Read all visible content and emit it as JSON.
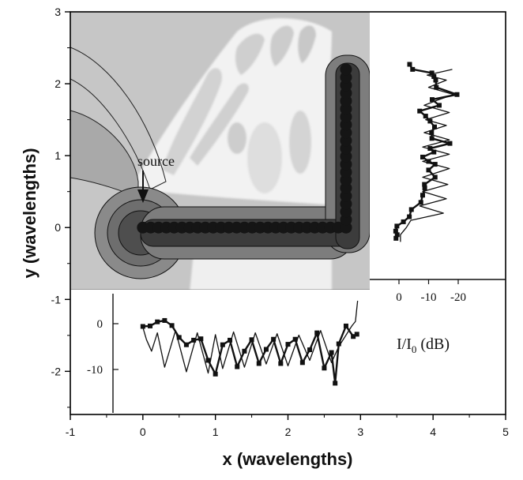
{
  "chart_data": [
    {
      "type": "heatmap",
      "title": "",
      "xlabel": "x (wavelengths)",
      "ylabel": "y (wavelengths)",
      "xlim": [
        -1,
        5
      ],
      "ylim": [
        -2.6,
        3
      ],
      "x_ticks": [
        "-1",
        "0",
        "1",
        "2",
        "3",
        "4",
        "5"
      ],
      "y_ticks": [
        "-2",
        "-1",
        "0",
        "1",
        "2",
        "3"
      ],
      "field_region": {
        "x": [
          -1,
          3.1
        ],
        "y": [
          -0.4,
          3
        ]
      },
      "waveguide": [
        {
          "from": [
            0,
            0
          ],
          "to": [
            2.8,
            0
          ]
        },
        {
          "from": [
            2.8,
            0
          ],
          "to": [
            2.8,
            2.2
          ]
        }
      ],
      "annotations": [
        {
          "text": "source",
          "x": 0,
          "y": 0
        }
      ]
    },
    {
      "type": "line",
      "title": "",
      "xlabel": "",
      "ylabel": "I/I₀ (dB)",
      "ylim": [
        -13.5,
        3
      ],
      "y_ticks": [
        "0",
        "-10"
      ],
      "series": [
        {
          "x": [
            0,
            0.1,
            0.2,
            0.3,
            0.4,
            0.5,
            0.6,
            0.7,
            0.8,
            0.9,
            1.0,
            1.1,
            1.2,
            1.3,
            1.4,
            1.5,
            1.6,
            1.7,
            1.8,
            1.9,
            2.0,
            2.1,
            2.2,
            2.3,
            2.4,
            2.5,
            2.6,
            2.65,
            2.7,
            2.8,
            2.9,
            2.95
          ],
          "values": [
            -0.6,
            -0.5,
            0.4,
            0.7,
            -0.4,
            -3.0,
            -4.6,
            -3.6,
            -3.3,
            -8.0,
            -11.0,
            -4.6,
            -3.6,
            -9.4,
            -6.0,
            -3.5,
            -8.7,
            -5.6,
            -3.4,
            -8.7,
            -4.5,
            -3.4,
            -8.5,
            -5.7,
            -2.0,
            -9.7,
            -6.3,
            -13.0,
            -4.4,
            -0.5,
            -2.8,
            -2.3
          ]
        },
        {
          "x": [
            0,
            0.05,
            0.12,
            0.2,
            0.3,
            0.45,
            0.6,
            0.75,
            0.9,
            1.0,
            1.1,
            1.25,
            1.4,
            1.55,
            1.7,
            1.85,
            2.0,
            2.15,
            2.3,
            2.45,
            2.6,
            2.7,
            2.8,
            2.88,
            2.93,
            2.96
          ],
          "values": [
            -0.8,
            -3.5,
            -6.0,
            -2.0,
            -9.5,
            -1.5,
            -10.5,
            -2.0,
            -10.8,
            -2.4,
            -9.8,
            -1.8,
            -9.5,
            -2.0,
            -8.8,
            -2.2,
            -9.2,
            -2.5,
            -8.0,
            -1.5,
            -8.5,
            -5.0,
            -2.5,
            -0.5,
            0.5,
            5.0
          ]
        }
      ]
    },
    {
      "type": "line",
      "title": "",
      "xlabel": "I/I₀ (dB)",
      "ylabel": "",
      "xlim": [
        2,
        -22
      ],
      "x_ticks": [
        "0",
        "-10",
        "-20"
      ],
      "series": [
        {
          "y": [
            2.27,
            2.2,
            2.15,
            2.1,
            2.05,
            1.95,
            1.85,
            1.78,
            1.7,
            1.62,
            1.55,
            1.48,
            1.4,
            1.32,
            1.24,
            1.17,
            1.1,
            1.05,
            0.98,
            0.92,
            0.88,
            0.8,
            0.7,
            0.6,
            0.55,
            0.45,
            0.35,
            0.25,
            0.15,
            0.08,
            0.02,
            -0.05,
            -0.1,
            -0.15
          ],
          "values": [
            -3.6,
            -4.6,
            -11.1,
            -11.8,
            -12.4,
            -12.6,
            -19.6,
            -11.2,
            -13.6,
            -7.0,
            -9.0,
            -10.5,
            -12.0,
            -11.0,
            -11.1,
            -17.2,
            -10.5,
            -11.8,
            -8.0,
            -10.0,
            -12.2,
            -10.0,
            -12.2,
            -8.6,
            -8.7,
            -8.0,
            -7.4,
            -4.2,
            -3.5,
            -1.5,
            0.7,
            1.1,
            0.6,
            1.0
          ]
        },
        {
          "y": [
            2.2,
            2.12,
            2.05,
            1.95,
            1.85,
            1.78,
            1.7,
            1.6,
            1.5,
            1.42,
            1.32,
            1.22,
            1.12,
            1.02,
            0.92,
            0.82,
            0.7,
            0.6,
            0.5,
            0.4,
            0.3,
            0.2,
            0.1,
            0.0,
            -0.1,
            -0.2
          ],
          "values": [
            -18.0,
            -9.5,
            -16.0,
            -10.0,
            -18.5,
            -13.5,
            -8.5,
            -17.0,
            -9.0,
            -16.0,
            -8.5,
            -17.0,
            -8.0,
            -17.0,
            -8.0,
            -17.0,
            -8.0,
            -16.5,
            -8.0,
            -16.0,
            -7.0,
            -15.0,
            -4.0,
            -2.5,
            -0.5,
            -0.5
          ]
        }
      ]
    }
  ]
}
